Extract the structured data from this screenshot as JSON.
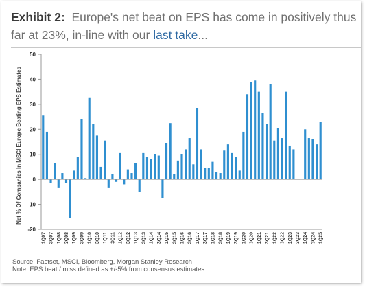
{
  "header": {
    "exhibit_label": "Exhibit 2:",
    "title_part1": "Europe's net beat on EPS has come in positively thus",
    "title_part2": "far at 23%, in-line with our",
    "title_link": "last take",
    "title_suffix": "..."
  },
  "footer": {
    "source": "Source: Factset, MSCI, Bloomberg, Morgan Stanley Research",
    "note": "Note: EPS beat / miss defined as +/-5% from consensus estimates"
  },
  "colors": {
    "bar": "#2f8fd0",
    "axis": "#9a9a9a",
    "text": "#333333",
    "link": "#2f6aa3"
  },
  "chart_data": {
    "type": "bar",
    "ylabel": "Net % Of Companies In MSCI Europe Beating EPS Estimates",
    "ylim": [
      -20,
      50
    ],
    "yticks": [
      -20,
      -10,
      0,
      10,
      20,
      30,
      40,
      50
    ],
    "tick_labels": [
      "1Q07",
      "3Q07",
      "1Q08",
      "3Q08",
      "1Q09",
      "3Q09",
      "1Q10",
      "3Q10",
      "1Q11",
      "3Q11",
      "1Q12",
      "3Q12",
      "1Q13",
      "3Q13",
      "1Q14",
      "3Q14",
      "1Q15",
      "3Q15",
      "1Q16",
      "3Q16",
      "1Q17",
      "3Q17",
      "1Q18",
      "3Q18",
      "1Q19",
      "3Q19",
      "1Q20",
      "3Q20",
      "1Q21",
      "3Q21",
      "1Q22",
      "3Q22",
      "1Q23",
      "3Q23",
      "1Q24",
      "3Q24",
      "1Q25"
    ],
    "categories": [
      "1Q07",
      "2Q07",
      "3Q07",
      "4Q07",
      "1Q08",
      "2Q08",
      "3Q08",
      "4Q08",
      "1Q09",
      "2Q09",
      "3Q09",
      "4Q09",
      "1Q10",
      "2Q10",
      "3Q10",
      "4Q10",
      "1Q11",
      "2Q11",
      "3Q11",
      "4Q11",
      "1Q12",
      "2Q12",
      "3Q12",
      "4Q12",
      "1Q13",
      "2Q13",
      "3Q13",
      "4Q13",
      "1Q14",
      "2Q14",
      "3Q14",
      "4Q14",
      "1Q15",
      "2Q15",
      "3Q15",
      "4Q15",
      "1Q16",
      "2Q16",
      "3Q16",
      "4Q16",
      "1Q17",
      "2Q17",
      "3Q17",
      "4Q17",
      "1Q18",
      "2Q18",
      "3Q18",
      "4Q18",
      "1Q19",
      "2Q19",
      "3Q19",
      "4Q19",
      "1Q20",
      "2Q20",
      "3Q20",
      "4Q20",
      "1Q21",
      "2Q21",
      "3Q21",
      "4Q21",
      "1Q22",
      "2Q22",
      "3Q22",
      "4Q22",
      "1Q23",
      "2Q23",
      "3Q23",
      "4Q23",
      "1Q24",
      "2Q24",
      "3Q24",
      "4Q24",
      "1Q25"
    ],
    "values": [
      25.5,
      19,
      -1.5,
      6.5,
      -3.5,
      2.5,
      -1.5,
      -15.5,
      3.5,
      9,
      24,
      0.5,
      32.5,
      22,
      17.5,
      5,
      15.5,
      -3.5,
      2,
      -1,
      10.5,
      -2,
      4,
      2.5,
      6.5,
      -5,
      10.5,
      9,
      8,
      10,
      9.5,
      -7.5,
      14.5,
      22.5,
      2,
      7.5,
      10,
      12,
      16.5,
      6,
      28.5,
      12,
      4.5,
      4.5,
      7,
      3,
      2.5,
      11.5,
      14,
      10.5,
      9,
      3.5,
      19,
      34,
      39,
      39.5,
      35,
      26.5,
      22,
      38,
      15.5,
      20.5,
      16.5,
      35,
      13.5,
      12,
      0,
      0,
      20,
      16.5,
      16,
      14,
      23
    ]
  }
}
